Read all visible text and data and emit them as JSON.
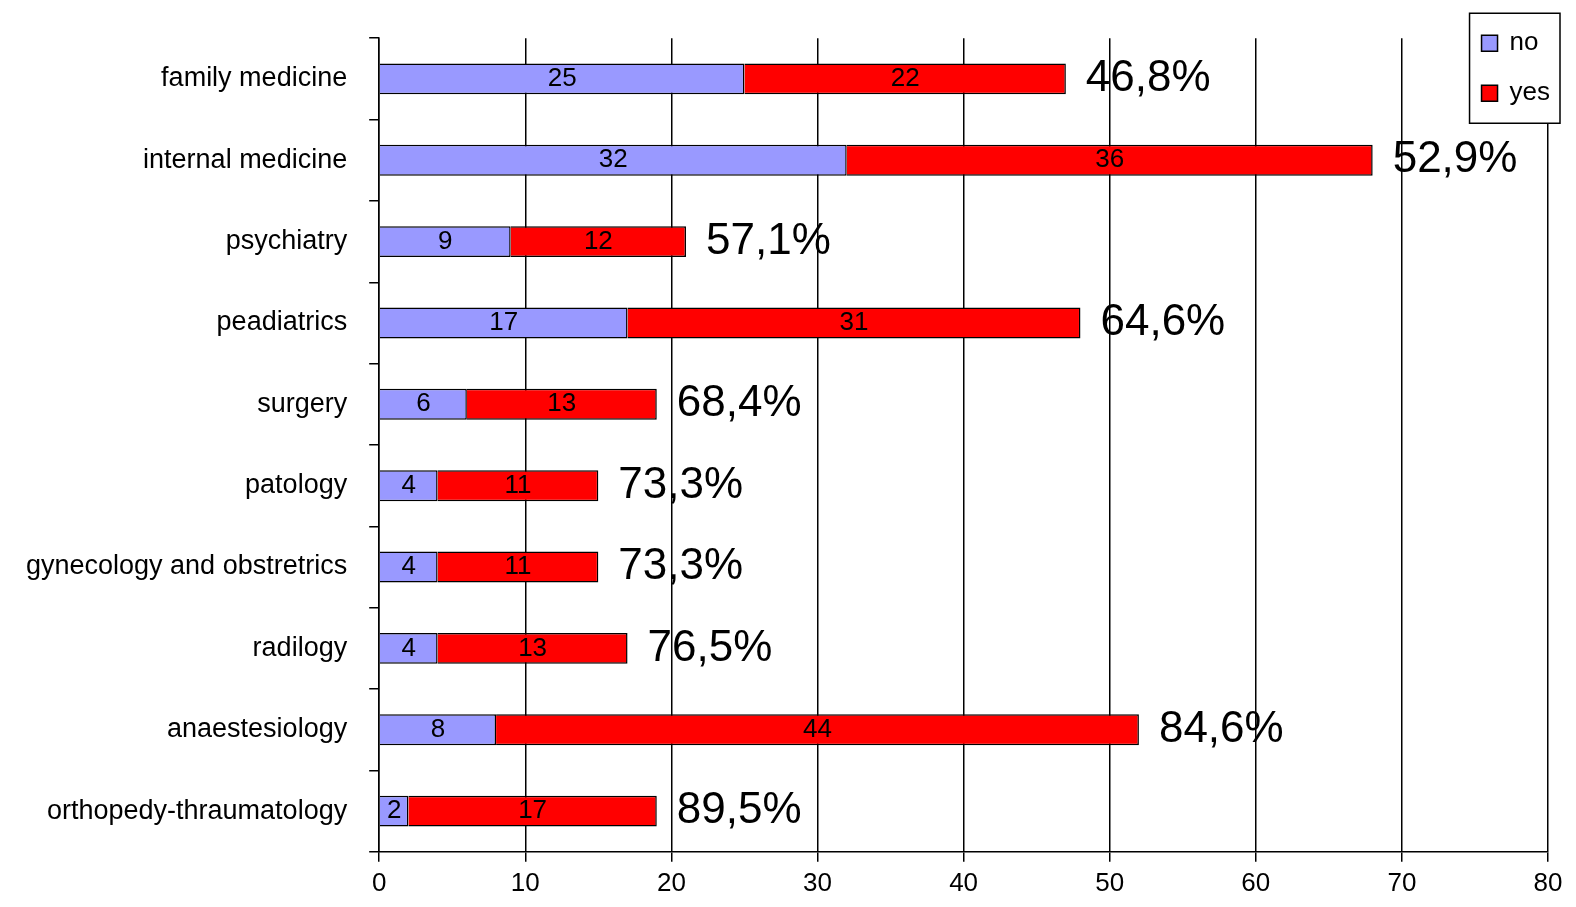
{
  "chart_data": {
    "type": "bar",
    "orientation": "horizontal",
    "stacked": true,
    "categories": [
      "family medicine",
      "internal medicine",
      "psychiatry",
      "peadiatrics",
      "surgery",
      "patology",
      "gynecology and obstretrics",
      "radilogy",
      "anaestesiology",
      "orthopedy-thraumatology"
    ],
    "series": [
      {
        "name": "no",
        "color": "#9999ff",
        "values": [
          25,
          32,
          9,
          17,
          6,
          4,
          4,
          4,
          8,
          2
        ]
      },
      {
        "name": "yes",
        "color": "#ff0000",
        "values": [
          22,
          36,
          12,
          31,
          13,
          11,
          11,
          13,
          44,
          17
        ]
      }
    ],
    "xlim": [
      0,
      80
    ],
    "xticks": [
      0,
      10,
      20,
      30,
      40,
      50,
      60,
      70,
      80
    ],
    "grid": "x",
    "legend": "top right",
    "data_labels": true,
    "annotations": [
      {
        "text": "46,8%",
        "x": 47,
        "y": "family medicine"
      },
      {
        "text": "52,9%",
        "x": 68,
        "y": "internal medicine"
      },
      {
        "text": "57,1%",
        "x": 21,
        "y": "psychiatry"
      },
      {
        "text": "64,6%",
        "x": 48,
        "y": "peadiatrics"
      },
      {
        "text": "68,4%",
        "x": 19,
        "y": "surgery"
      },
      {
        "text": "73,3%",
        "x": 15,
        "y": "patology"
      },
      {
        "text": "73,3%",
        "x": 15,
        "y": "gynecology and obstretrics"
      },
      {
        "text": "76,5%",
        "x": 17,
        "y": "radilogy"
      },
      {
        "text": "84,6%",
        "x": 52,
        "y": "anaestesiology"
      },
      {
        "text": "89,5%",
        "x": 19,
        "y": "orthopedy-thraumatology"
      }
    ]
  }
}
